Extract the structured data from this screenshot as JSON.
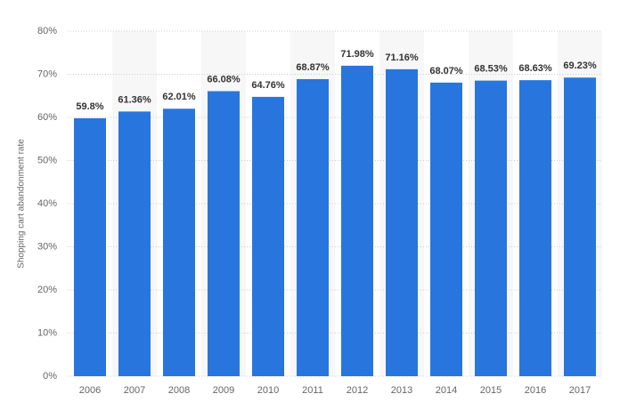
{
  "chart_data": {
    "type": "bar",
    "y_label": "Shopping cart abandonment rate",
    "categories": [
      "2006",
      "2007",
      "2008",
      "2009",
      "2010",
      "2011",
      "2012",
      "2013",
      "2014",
      "2015",
      "2016",
      "2017"
    ],
    "values": [
      59.8,
      61.36,
      62.01,
      66.08,
      64.76,
      68.87,
      71.98,
      71.16,
      68.07,
      68.53,
      68.63,
      69.23
    ],
    "value_labels": [
      "59.8%",
      "61.36%",
      "62.01%",
      "66.08%",
      "64.76%",
      "68.87%",
      "71.98%",
      "71.16%",
      "68.07%",
      "68.53%",
      "68.63%",
      "69.23%"
    ],
    "color": "#2876dd",
    "ylim": [
      0,
      80
    ],
    "yticks": [
      {
        "value": 0,
        "label": "0%"
      },
      {
        "value": 10,
        "label": "10%"
      },
      {
        "value": 20,
        "label": "20%"
      },
      {
        "value": 30,
        "label": "30%"
      },
      {
        "value": 40,
        "label": "40%"
      },
      {
        "value": 50,
        "label": "50%"
      },
      {
        "value": 60,
        "label": "60%"
      },
      {
        "value": 70,
        "label": "70%"
      },
      {
        "value": 80,
        "label": "80%"
      }
    ],
    "grid": true
  }
}
